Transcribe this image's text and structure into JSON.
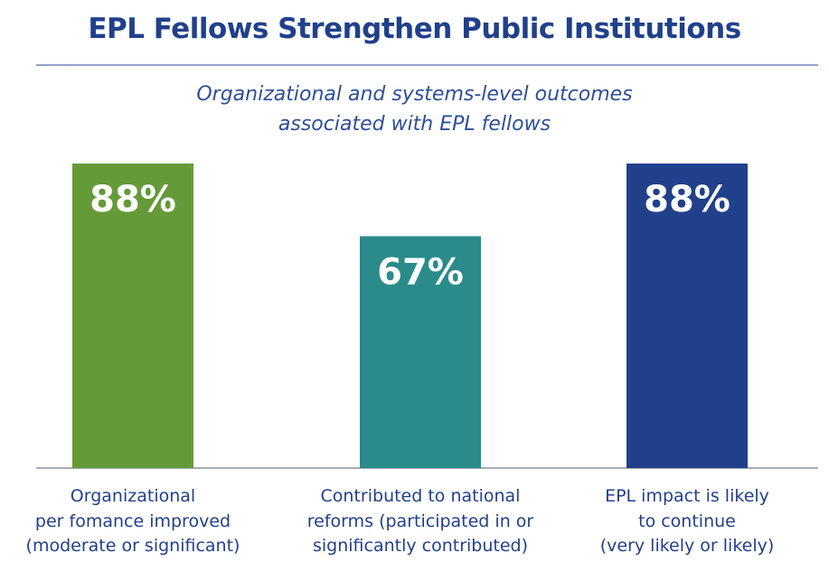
{
  "chart_data": {
    "type": "bar",
    "title": "EPL Fellows Strengthen Public Institutions",
    "subtitle": "Organizational and systems-level outcomes\nassociated with EPL fellows",
    "categories": [
      "Organizational\nper fomance improved\n(moderate or significant)",
      "Contributed to national\nreforms (participated in or\nsignificantly contributed)",
      "EPL impact is likely\nto continue\n(very likely or likely)"
    ],
    "values": [
      88,
      67,
      88
    ],
    "value_labels": [
      "88%",
      "67%",
      "88%"
    ],
    "colors": [
      "#659a38",
      "#2a8b8a",
      "#21408b"
    ]
  }
}
